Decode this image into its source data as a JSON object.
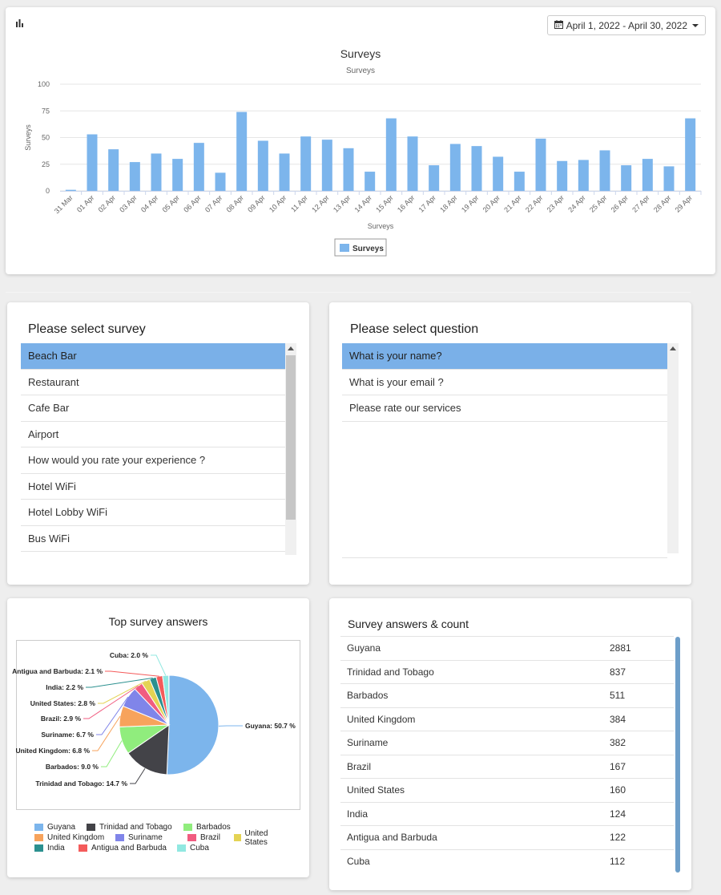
{
  "toolbar": {
    "chart_icon": "bar-chart-icon",
    "date_icon": "calendar-icon",
    "date_range_label": "April 1, 2022 - April 30, 2022"
  },
  "chart_data": {
    "type": "bar",
    "title": "Surveys",
    "subtitle": "Surveys",
    "xlabel": "Surveys",
    "ylabel": "Surveys",
    "ylim": [
      0,
      100
    ],
    "yticks": [
      0,
      25,
      50,
      75,
      100
    ],
    "grid": true,
    "legend_position": "bottom-center",
    "categories": [
      "31 Mar",
      "01 Apr",
      "02 Apr",
      "03 Apr",
      "04 Apr",
      "05 Apr",
      "06 Apr",
      "07 Apr",
      "08 Apr",
      "09 Apr",
      "10 Apr",
      "11 Apr",
      "12 Apr",
      "13 Apr",
      "14 Apr",
      "15 Apr",
      "16 Apr",
      "17 Apr",
      "18 Apr",
      "19 Apr",
      "20 Apr",
      "21 Apr",
      "22 Apr",
      "23 Apr",
      "24 Apr",
      "25 Apr",
      "26 Apr",
      "27 Apr",
      "28 Apr",
      "29 Apr"
    ],
    "series": [
      {
        "name": "Surveys",
        "color": "#7cb5ec",
        "values": [
          1,
          53,
          39,
          27,
          35,
          30,
          45,
          17,
          74,
          47,
          35,
          51,
          48,
          40,
          18,
          68,
          51,
          24,
          44,
          42,
          32,
          18,
          49,
          28,
          29,
          38,
          24,
          30,
          23,
          68
        ]
      }
    ]
  },
  "survey_panel": {
    "title": "Please select survey",
    "items": [
      "Beach Bar",
      "Restaurant",
      "Cafe Bar",
      "Airport",
      "How would you rate your experience ?",
      "Hotel WiFi",
      "Hotel Lobby WiFi",
      "Bus WiFi"
    ],
    "selected_index": 0
  },
  "question_panel": {
    "title": "Please select question",
    "items": [
      "What is your name?",
      "What is your email ?",
      "Please rate our services"
    ],
    "selected_index": 0
  },
  "pie_chart": {
    "title": "Top survey answers",
    "slices": [
      {
        "name": "Guyana",
        "percent": 50.7,
        "label": "Guyana: 50.7 %",
        "color": "#7cb5ec"
      },
      {
        "name": "Trinidad and Tobago",
        "percent": 14.7,
        "label": "Trinidad and Tobago: 14.7 %",
        "color": "#434348"
      },
      {
        "name": "Barbados",
        "percent": 9.0,
        "label": "Barbados: 9.0 %",
        "color": "#90ed7d"
      },
      {
        "name": "United Kingdom",
        "percent": 6.8,
        "label": "United Kingdom: 6.8 %",
        "color": "#f7a35c"
      },
      {
        "name": "Suriname",
        "percent": 6.7,
        "label": "Suriname: 6.7 %",
        "color": "#8085e9"
      },
      {
        "name": "Brazil",
        "percent": 2.9,
        "label": "Brazil: 2.9 %",
        "color": "#f15c80"
      },
      {
        "name": "United States",
        "percent": 2.8,
        "label": "United States: 2.8 %",
        "color": "#e4d354"
      },
      {
        "name": "India",
        "percent": 2.2,
        "label": "India: 2.2 %",
        "color": "#2b908f"
      },
      {
        "name": "Antigua and Barbuda",
        "percent": 2.1,
        "label": "Antigua and Barbuda: 2.1 %",
        "color": "#f45b5b"
      },
      {
        "name": "Cuba",
        "percent": 2.0,
        "label": "Cuba: 2.0 %",
        "color": "#91e8e1"
      }
    ]
  },
  "answers_table": {
    "title": "Survey answers & count",
    "rows": [
      {
        "name": "Guyana",
        "count": "2881"
      },
      {
        "name": "Trinidad and Tobago",
        "count": "837"
      },
      {
        "name": "Barbados",
        "count": "511"
      },
      {
        "name": "United Kingdom",
        "count": "384"
      },
      {
        "name": "Suriname",
        "count": "382"
      },
      {
        "name": "Brazil",
        "count": "167"
      },
      {
        "name": "United States",
        "count": "160"
      },
      {
        "name": "India",
        "count": "124"
      },
      {
        "name": "Antigua and Barbuda",
        "count": "122"
      },
      {
        "name": "Cuba",
        "count": "112"
      }
    ]
  }
}
